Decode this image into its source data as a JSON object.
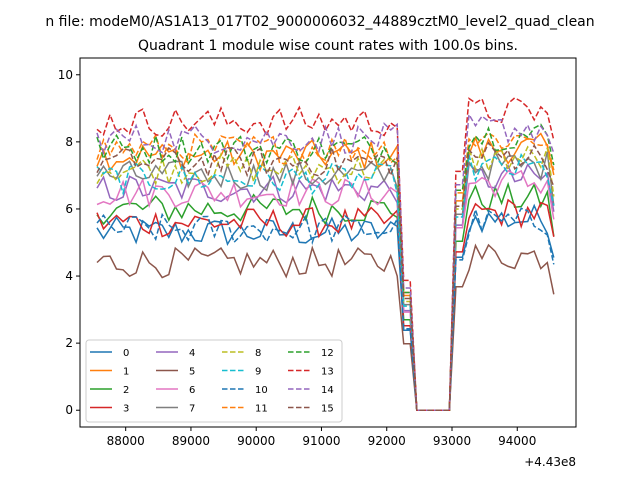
{
  "figure": {
    "suptitle": "n file: modeM0/AS1A13_017T02_9000006032_44889cztM0_level2_quad_clean",
    "offset_label": "+4.43e8"
  },
  "chart_data": {
    "type": "line",
    "title": "Quadrant 1 module wise count rates with 100.0s bins.",
    "xlabel": "",
    "ylabel": "",
    "x_offset": 443000000,
    "xlim": [
      87300,
      94900
    ],
    "ylim": [
      -0.5,
      10.5
    ],
    "xticks": [
      88000,
      89000,
      90000,
      91000,
      92000,
      93000,
      94000
    ],
    "xtick_labels": [
      "88000",
      "89000",
      "90000",
      "91000",
      "92000",
      "93000",
      "94000"
    ],
    "yticks": [
      0,
      2,
      4,
      6,
      8,
      10
    ],
    "ytick_labels": [
      "0",
      "2",
      "4",
      "6",
      "8",
      "10"
    ],
    "grid": false,
    "legend": {
      "position": "lower-left",
      "columns": 4
    },
    "x_start": 87560,
    "x_step": 100,
    "n_points": 71,
    "gap": {
      "drop_start_index": 8,
      "low_start_index": 9,
      "low_end_index": 14,
      "rise_end_index": 15,
      "note": "indices within segment; flat at 0 between 92400 and 93000"
    },
    "series": [
      {
        "name": "0",
        "color": "#1f77b4",
        "dash": "solid",
        "mean_before": 5.3,
        "mean_after": 5.7
      },
      {
        "name": "1",
        "color": "#ff7f0e",
        "dash": "solid",
        "mean_before": 7.6,
        "mean_after": 7.8
      },
      {
        "name": "2",
        "color": "#2ca02c",
        "dash": "solid",
        "mean_before": 6.0,
        "mean_after": 6.3
      },
      {
        "name": "3",
        "color": "#d62728",
        "dash": "solid",
        "mean_before": 5.6,
        "mean_after": 5.9
      },
      {
        "name": "4",
        "color": "#9467bd",
        "dash": "solid",
        "mean_before": 6.6,
        "mean_after": 6.9
      },
      {
        "name": "5",
        "color": "#8c564b",
        "dash": "solid",
        "mean_before": 4.4,
        "mean_after": 4.6
      },
      {
        "name": "6",
        "color": "#e377c2",
        "dash": "solid",
        "mean_before": 6.5,
        "mean_after": 6.8
      },
      {
        "name": "7",
        "color": "#7f7f7f",
        "dash": "solid",
        "mean_before": 7.0,
        "mean_after": 7.3
      },
      {
        "name": "8",
        "color": "#bcbd22",
        "dash": "dashed",
        "mean_before": 7.2,
        "mean_after": 7.5
      },
      {
        "name": "9",
        "color": "#17becf",
        "dash": "dashed",
        "mean_before": 6.9,
        "mean_after": 7.2
      },
      {
        "name": "10",
        "color": "#1f77b4",
        "dash": "dashed",
        "mean_before": 5.4,
        "mean_after": 5.6
      },
      {
        "name": "11",
        "color": "#ff7f0e",
        "dash": "dashed",
        "mean_before": 7.8,
        "mean_after": 8.1
      },
      {
        "name": "12",
        "color": "#2ca02c",
        "dash": "dashed",
        "mean_before": 7.8,
        "mean_after": 8.2
      },
      {
        "name": "13",
        "color": "#d62728",
        "dash": "dashed",
        "mean_before": 8.6,
        "mean_after": 8.9
      },
      {
        "name": "14",
        "color": "#9467bd",
        "dash": "dashed",
        "mean_before": 8.1,
        "mean_after": 8.4
      },
      {
        "name": "15",
        "color": "#8c564b",
        "dash": "dashed",
        "mean_before": 7.4,
        "mean_after": 7.6
      }
    ]
  }
}
